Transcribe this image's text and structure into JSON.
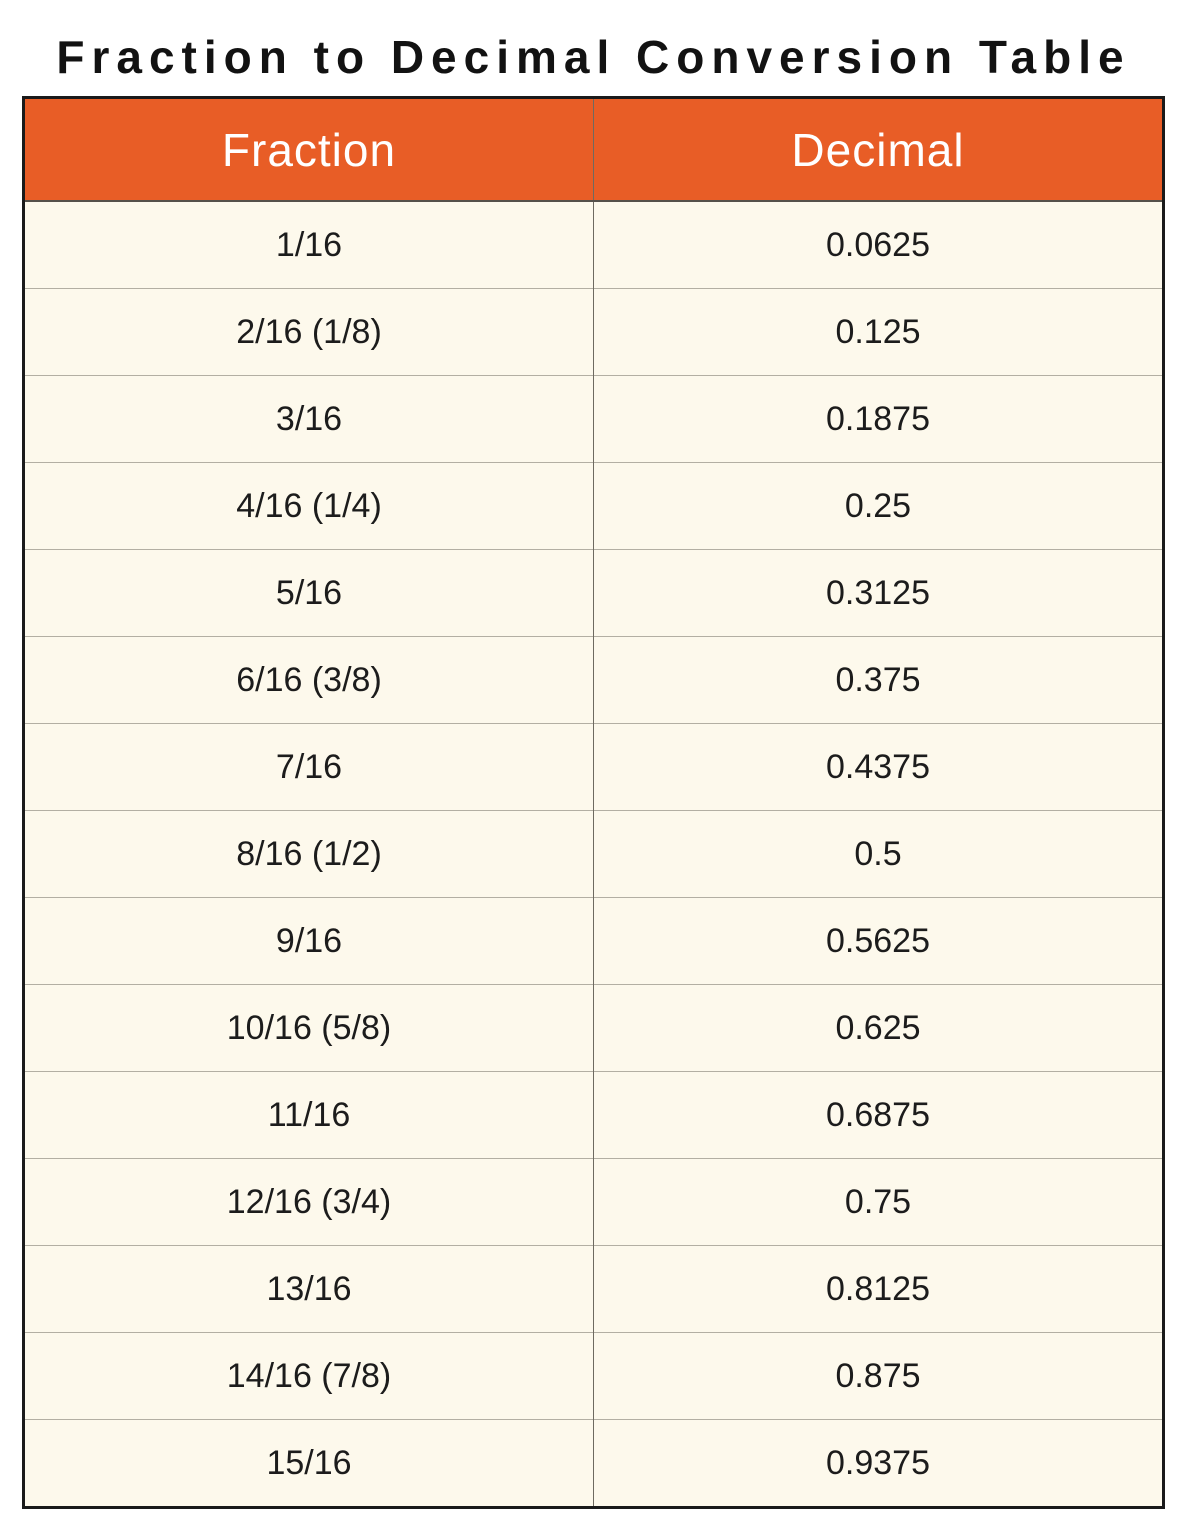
{
  "page": {
    "title": "Fraction to Decimal Conversion Table"
  },
  "table": {
    "headers": [
      "Fraction",
      "Decimal"
    ],
    "rows": [
      {
        "fraction": "1/16",
        "decimal": "0.0625"
      },
      {
        "fraction": "2/16 (1/8)",
        "decimal": "0.125"
      },
      {
        "fraction": "3/16",
        "decimal": "0.1875"
      },
      {
        "fraction": "4/16 (1/4)",
        "decimal": "0.25"
      },
      {
        "fraction": "5/16",
        "decimal": "0.3125"
      },
      {
        "fraction": "6/16 (3/8)",
        "decimal": "0.375"
      },
      {
        "fraction": "7/16",
        "decimal": "0.4375"
      },
      {
        "fraction": "8/16 (1/2)",
        "decimal": "0.5"
      },
      {
        "fraction": "9/16",
        "decimal": "0.5625"
      },
      {
        "fraction": "10/16 (5/8)",
        "decimal": "0.625"
      },
      {
        "fraction": "11/16",
        "decimal": "0.6875"
      },
      {
        "fraction": "12/16 (3/4)",
        "decimal": "0.75"
      },
      {
        "fraction": "13/16",
        "decimal": "0.8125"
      },
      {
        "fraction": "14/16 (7/8)",
        "decimal": "0.875"
      },
      {
        "fraction": "15/16",
        "decimal": "0.9375"
      }
    ],
    "colors": {
      "header_bg": "#E85D26",
      "header_text": "#FFFFFF",
      "row_bg": "#FDF9EC",
      "outer_border": "#1A1A1A",
      "row_divider": "#B3AFA3",
      "column_divider": "#6E6A60"
    }
  }
}
